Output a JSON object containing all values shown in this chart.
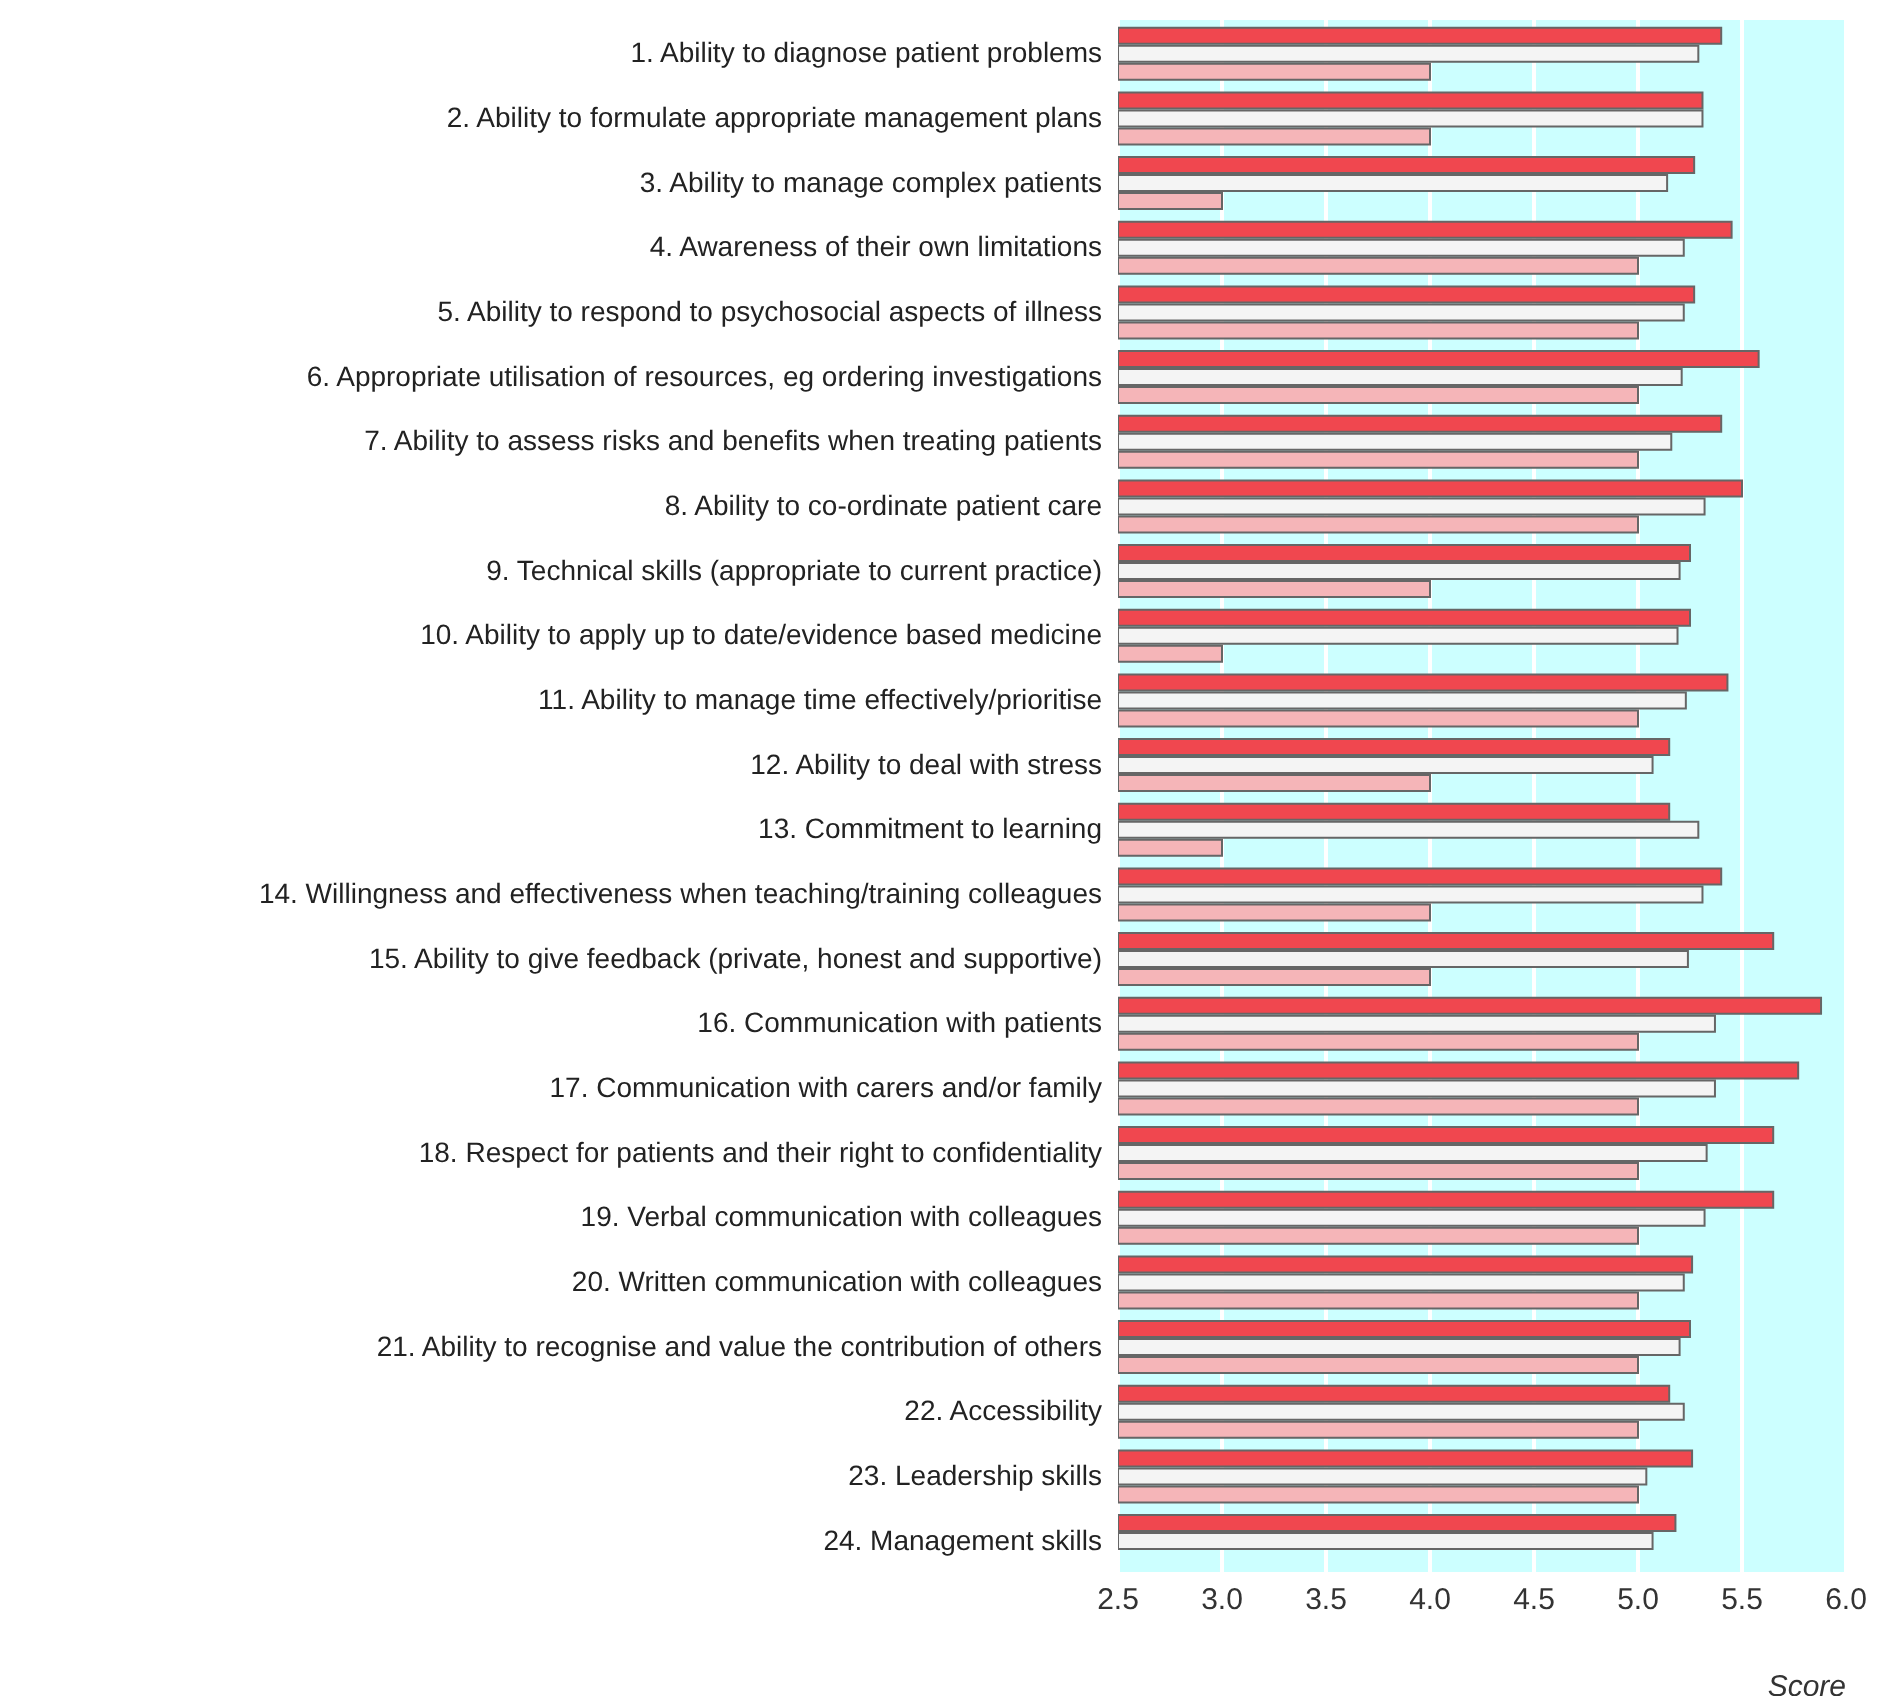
{
  "chart_data": {
    "type": "bar",
    "orientation": "horizontal",
    "xlabel": "Score",
    "categories": [
      "1. Ability to diagnose patient problems",
      "2. Ability to formulate appropriate management plans",
      "3. Ability to manage complex patients",
      "4. Awareness of their own limitations",
      "5. Ability to respond to psychosocial aspects of illness",
      "6. Appropriate utilisation of resources, eg ordering investigations",
      "7. Ability to assess risks and benefits when treating patients",
      "8. Ability to co-ordinate patient care",
      "9. Technical skills (appropriate to current practice)",
      "10. Ability to apply up to date/evidence based medicine",
      "11. Ability to manage time effectively/prioritise",
      "12. Ability to deal with stress",
      "13. Commitment to learning",
      "14. Willingness and effectiveness when teaching/training colleagues",
      "15. Ability to give feedback (private, honest and supportive)",
      "16. Communication with patients",
      "17. Communication with carers and/or family",
      "18. Respect for patients and their right to confidentiality",
      "19. Verbal communication with colleagues",
      "20. Written communication with colleagues",
      "21. Ability to recognise and value the contribution of others",
      "22. Accessibility",
      "23. Leadership skills",
      "24. Management skills"
    ],
    "series": [
      {
        "color": "#f0474f",
        "values": [
          5.4,
          5.31,
          5.27,
          5.45,
          5.27,
          5.58,
          5.4,
          5.5,
          5.25,
          5.25,
          5.43,
          5.15,
          5.15,
          5.4,
          5.65,
          5.88,
          5.77,
          5.65,
          5.65,
          5.26,
          5.25,
          5.15,
          5.26,
          5.18
        ]
      },
      {
        "color": "#f4f4f4",
        "values": [
          5.29,
          5.31,
          5.14,
          5.22,
          5.22,
          5.21,
          5.16,
          5.32,
          5.2,
          5.19,
          5.23,
          5.07,
          5.29,
          5.31,
          5.24,
          5.37,
          5.37,
          5.33,
          5.32,
          5.22,
          5.2,
          5.22,
          5.04,
          5.07
        ]
      },
      {
        "color": "#f5b5b8",
        "values": [
          4,
          4,
          3,
          5,
          5,
          5,
          5,
          5,
          4,
          3,
          5,
          4,
          3,
          4,
          4,
          5,
          5,
          5,
          5,
          5,
          5,
          5,
          5,
          null
        ]
      }
    ],
    "xlim": [
      2.5,
      6.0
    ],
    "xticks": [
      {
        "value": 2.5,
        "label": "2.5"
      },
      {
        "value": 3,
        "label": "3.0"
      },
      {
        "value": 3.5,
        "label": "3.5"
      },
      {
        "value": 4,
        "label": "4.0"
      },
      {
        "value": 4.5,
        "label": "4.5"
      },
      {
        "value": 5,
        "label": "5.0"
      },
      {
        "value": 5.5,
        "label": "5.5"
      },
      {
        "value": 6,
        "label": "6.0"
      }
    ],
    "grid": "x",
    "legend": false
  }
}
